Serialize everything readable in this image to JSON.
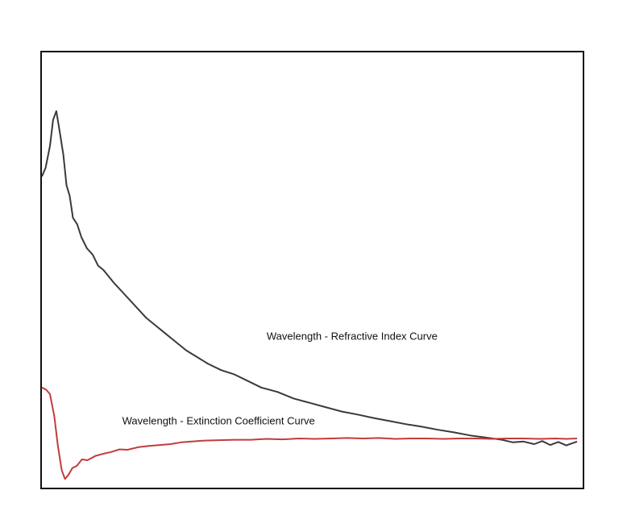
{
  "chart_data": {
    "type": "line",
    "title": "",
    "xlabel": "",
    "ylabel": "",
    "grid": false,
    "legend": "none",
    "xlim": [
      0,
      100
    ],
    "ylim": [
      0,
      100
    ],
    "series": [
      {
        "name": "Wavelength - Refractive Index Curve",
        "color": "#3a3a3a",
        "x": [
          0,
          0.7,
          1.5,
          2.1,
          2.7,
          3.3,
          4.0,
          4.6,
          5.2,
          5.8,
          6.6,
          7.4,
          8.4,
          9.5,
          10.5,
          11.5,
          12.5,
          13.5,
          15,
          16.5,
          18,
          19.5,
          21,
          23,
          25,
          27,
          29,
          31,
          33.5,
          36,
          38.5,
          41,
          44,
          47,
          50,
          53,
          56,
          59,
          62,
          65,
          68,
          71,
          74,
          77,
          80,
          83,
          86,
          88,
          90,
          92,
          93.5,
          95,
          96.5,
          98,
          100
        ],
        "y": [
          71.5,
          73.5,
          78.5,
          84.5,
          86.5,
          82.0,
          76.5,
          69.5,
          67.0,
          62.0,
          60.5,
          57.5,
          55.0,
          53.5,
          51.0,
          50.0,
          48.5,
          47.0,
          45.0,
          43.0,
          41.0,
          39.0,
          37.5,
          35.5,
          33.5,
          31.5,
          30.0,
          28.5,
          27.0,
          26.0,
          24.5,
          23.0,
          22.0,
          20.5,
          19.5,
          18.5,
          17.5,
          16.8,
          16.0,
          15.3,
          14.6,
          14.0,
          13.3,
          12.7,
          12.0,
          11.5,
          11.0,
          10.4,
          10.6,
          10.0,
          10.7,
          9.8,
          10.5,
          9.7,
          10.6
        ]
      },
      {
        "name": "Wavelength - Extinction Coefficient Curve",
        "color": "#c33c3c",
        "x": [
          0,
          0.8,
          1.5,
          2.3,
          3.0,
          3.7,
          4.3,
          5.0,
          5.7,
          6.5,
          7.5,
          8.5,
          10,
          11.5,
          13,
          14.5,
          16,
          18,
          20,
          22,
          24,
          26,
          28,
          30,
          33,
          36,
          39,
          42,
          45,
          48,
          51,
          54,
          57,
          60,
          63,
          66,
          69,
          72,
          75,
          78,
          81,
          84,
          87,
          90,
          93,
          96,
          98,
          100
        ],
        "y": [
          23.0,
          22.5,
          21.5,
          16.5,
          9.5,
          4.0,
          2.0,
          3.0,
          4.5,
          5.0,
          6.5,
          6.3,
          7.3,
          7.8,
          8.2,
          8.8,
          8.7,
          9.3,
          9.6,
          9.8,
          10.0,
          10.4,
          10.6,
          10.8,
          10.9,
          11.0,
          11.0,
          11.2,
          11.1,
          11.3,
          11.2,
          11.3,
          11.4,
          11.3,
          11.4,
          11.2,
          11.3,
          11.3,
          11.2,
          11.3,
          11.3,
          11.2,
          11.3,
          11.3,
          11.2,
          11.3,
          11.2,
          11.3
        ]
      }
    ],
    "annotations": [
      {
        "text": "Wavelength - Refractive Index Curve",
        "series": 0,
        "x": 42,
        "y": 34
      },
      {
        "text": "Wavelength - Extinction Coefficient Curve",
        "series": 1,
        "x": 15,
        "y": 14.5
      }
    ]
  }
}
